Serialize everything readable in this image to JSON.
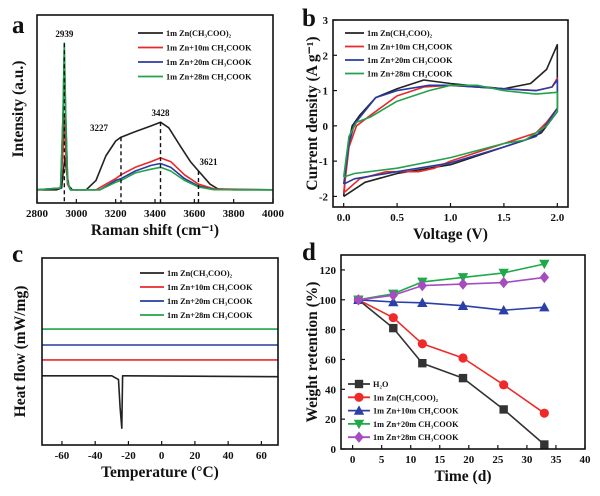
{
  "chart_data": [
    {
      "panel": "a",
      "type": "line",
      "xlabel": "Raman shift (cm⁻¹)",
      "ylabel": "Intensity (a.u.)",
      "xlim": [
        2800,
        4000
      ],
      "ylim": [
        0,
        1
      ],
      "xticks": [
        2800,
        3000,
        3200,
        3400,
        3600,
        3800,
        4000
      ],
      "xtick_labels": [
        "2800",
        "3000",
        "3200",
        "3400",
        "3600",
        "3800",
        "4000"
      ],
      "legend": "top-right",
      "annotations": [
        {
          "text": "2939",
          "x": 2939,
          "y_top": 0.85
        },
        {
          "text": "3227",
          "x": 3227,
          "y_top": 0.35
        },
        {
          "text": "3428",
          "x": 3428,
          "y_top": 0.43
        },
        {
          "text": "3621",
          "x": 3621,
          "y_top": 0.17
        }
      ],
      "series": [
        {
          "name": "1m Zn(CH₃COO)₂",
          "color": "#222222",
          "x": [
            2800,
            2900,
            2925,
            2935,
            2942,
            2950,
            2962,
            2980,
            3050,
            3100,
            3150,
            3200,
            3227,
            3300,
            3380,
            3428,
            3470,
            3530,
            3580,
            3621,
            3680,
            3720,
            3800,
            4000
          ],
          "y": [
            0.07,
            0.07,
            0.08,
            0.18,
            0.24,
            0.17,
            0.09,
            0.07,
            0.07,
            0.12,
            0.25,
            0.33,
            0.35,
            0.38,
            0.41,
            0.43,
            0.4,
            0.3,
            0.22,
            0.17,
            0.1,
            0.075,
            0.07,
            0.07
          ]
        },
        {
          "name": "1m Zn+10m CH₃COOK",
          "color": "#e8282b",
          "x": [
            2800,
            2920,
            2933,
            2939,
            2945,
            2955,
            2970,
            3100,
            3200,
            3227,
            3300,
            3380,
            3428,
            3480,
            3550,
            3621,
            3700,
            4000
          ],
          "y": [
            0.07,
            0.08,
            0.3,
            0.47,
            0.3,
            0.1,
            0.07,
            0.07,
            0.13,
            0.15,
            0.19,
            0.22,
            0.24,
            0.22,
            0.15,
            0.1,
            0.075,
            0.07
          ]
        },
        {
          "name": "1m Zn+20m CH₃COOK",
          "color": "#2a3b9f",
          "x": [
            2800,
            2920,
            2932,
            2939,
            2946,
            2956,
            2970,
            3120,
            3200,
            3227,
            3300,
            3380,
            3428,
            3480,
            3550,
            3621,
            3700,
            4000
          ],
          "y": [
            0.07,
            0.08,
            0.45,
            0.8,
            0.45,
            0.11,
            0.07,
            0.07,
            0.12,
            0.13,
            0.17,
            0.2,
            0.21,
            0.19,
            0.13,
            0.09,
            0.072,
            0.07
          ]
        },
        {
          "name": "1m Zn+28m CH₃COOK",
          "color": "#22a24a",
          "x": [
            2800,
            2920,
            2932,
            2939,
            2946,
            2956,
            2970,
            3120,
            3200,
            3227,
            3300,
            3380,
            3428,
            3480,
            3550,
            3621,
            3700,
            4000
          ],
          "y": [
            0.07,
            0.08,
            0.48,
            0.85,
            0.48,
            0.11,
            0.07,
            0.07,
            0.11,
            0.12,
            0.16,
            0.18,
            0.19,
            0.17,
            0.12,
            0.085,
            0.071,
            0.07
          ]
        }
      ]
    },
    {
      "panel": "b",
      "type": "line",
      "xlabel": "Voltage (V)",
      "ylabel": "Current density (A g⁻¹)",
      "xlim": [
        -0.1,
        2.1
      ],
      "ylim": [
        -2.3,
        3
      ],
      "xticks": [
        0,
        0.5,
        1,
        1.5,
        2
      ],
      "xtick_labels": [
        "0.0",
        "0.5",
        "1.0",
        "1.5",
        "2.0"
      ],
      "yticks": [
        -2,
        -1,
        0,
        1,
        2,
        3
      ],
      "ytick_labels": [
        "-2",
        "-1",
        "0",
        "1",
        "2",
        "3"
      ],
      "legend": "top-left",
      "series": [
        {
          "name": "1m Zn(CH₃COO)₂",
          "color": "#222222",
          "x": [
            0,
            0.04,
            0.08,
            0.15,
            0.3,
            0.5,
            0.75,
            1.0,
            1.5,
            1.75,
            1.9,
            2.0,
            2.0,
            1.95,
            1.85,
            1.7,
            1.5,
            1.0,
            0.5,
            0.2,
            0
          ],
          "y": [
            -2.0,
            -0.6,
            0.0,
            0.3,
            0.8,
            1.05,
            1.3,
            1.2,
            1.05,
            1.2,
            1.6,
            2.3,
            0.4,
            0.2,
            -0.2,
            -0.4,
            -0.6,
            -1.1,
            -1.35,
            -1.6,
            -2.0
          ]
        },
        {
          "name": "1m Zn+10m CH₃COOK",
          "color": "#e8282b",
          "x": [
            0,
            0.05,
            0.12,
            0.25,
            0.5,
            0.75,
            1.0,
            1.5,
            1.8,
            1.95,
            2.0,
            2.0,
            1.9,
            1.8,
            1.5,
            1.0,
            0.85,
            0.7,
            0.4,
            0.15,
            0
          ],
          "y": [
            -1.9,
            -0.6,
            0.0,
            0.3,
            0.85,
            1.1,
            1.15,
            1.05,
            1.0,
            1.1,
            1.35,
            0.5,
            0.1,
            -0.2,
            -0.5,
            -1.0,
            -1.2,
            -1.3,
            -1.3,
            -1.5,
            -1.9
          ]
        },
        {
          "name": "1m Zn+20m CH₃COOK",
          "color": "#2a3b9f",
          "x": [
            0,
            0.05,
            0.1,
            0.3,
            0.5,
            0.8,
            1.0,
            1.5,
            1.8,
            1.95,
            2.0,
            2.0,
            1.9,
            1.8,
            1.5,
            1.0,
            0.5,
            0.1,
            0
          ],
          "y": [
            -1.65,
            -0.5,
            0.05,
            0.8,
            1.0,
            1.15,
            1.15,
            1.05,
            1.0,
            1.1,
            1.3,
            0.5,
            0.05,
            -0.3,
            -0.6,
            -1.05,
            -1.3,
            -1.5,
            -1.65
          ]
        },
        {
          "name": "1m Zn+28m CH₃COOK",
          "color": "#22a24a",
          "x": [
            0,
            0.05,
            0.12,
            0.25,
            0.5,
            0.8,
            1.0,
            1.25,
            1.5,
            1.8,
            2.0,
            2.0,
            1.9,
            1.7,
            1.5,
            1.0,
            0.5,
            0.1,
            0
          ],
          "y": [
            -1.45,
            -0.3,
            0.1,
            0.25,
            0.7,
            1.0,
            1.15,
            1.15,
            1.0,
            0.9,
            0.95,
            0.4,
            0.0,
            -0.4,
            -0.5,
            -0.9,
            -1.2,
            -1.35,
            -1.45
          ]
        }
      ]
    },
    {
      "panel": "c",
      "type": "line",
      "xlabel": "Temperature (°C)",
      "ylabel": "Heat flow (mW/mg)",
      "xlim": [
        -72,
        70
      ],
      "ylim": [
        0,
        1
      ],
      "xticks": [
        -60,
        -40,
        -20,
        0,
        20,
        40,
        60
      ],
      "xtick_labels": [
        "-60",
        "-40",
        "-20",
        "0",
        "20",
        "40",
        "60"
      ],
      "legend": "top-right",
      "series": [
        {
          "name": "1m Zn(CH₃COO)₂",
          "color": "#222222",
          "x": [
            -72,
            -30,
            -26,
            -25,
            -24,
            -23.5,
            -22,
            70
          ],
          "y": [
            0.37,
            0.37,
            0.35,
            0.2,
            0.09,
            0.37,
            0.37,
            0.365
          ]
        },
        {
          "name": "1m Zn+10m CH₃COOK",
          "color": "#e8282b",
          "x": [
            -72,
            70
          ],
          "y": [
            0.455,
            0.455
          ]
        },
        {
          "name": "1m Zn+20m CH₃COOK",
          "color": "#2a3b9f",
          "x": [
            -72,
            70
          ],
          "y": [
            0.535,
            0.535
          ]
        },
        {
          "name": "1m Zn+28m CH₃COOK",
          "color": "#22a24a",
          "x": [
            -72,
            70
          ],
          "y": [
            0.62,
            0.62
          ]
        }
      ]
    },
    {
      "panel": "d",
      "type": "line",
      "xlabel": "Time (d)",
      "ylabel": "Weight retention (%)",
      "xlim": [
        -2,
        40
      ],
      "ylim": [
        0,
        130
      ],
      "xticks": [
        0,
        5,
        10,
        15,
        20,
        25,
        30,
        35,
        40
      ],
      "xtick_labels": [
        "0",
        "5",
        "10",
        "15",
        "20",
        "25",
        "30",
        "35",
        "40"
      ],
      "yticks": [
        0,
        20,
        40,
        60,
        80,
        100,
        120
      ],
      "ytick_labels": [
        "0",
        "20",
        "40",
        "60",
        "80",
        "100",
        "120"
      ],
      "legend": "bottom-left",
      "series": [
        {
          "name": "H₂O",
          "color": "#333333",
          "marker": "square",
          "x": [
            1,
            7,
            12,
            19,
            26,
            33
          ],
          "y": [
            100,
            81,
            57.5,
            47.5,
            26.5,
            3
          ]
        },
        {
          "name": "1m Zn(CH₃COO)₂",
          "color": "#ee2a2a",
          "marker": "circle",
          "x": [
            1,
            7,
            12,
            19,
            26,
            33
          ],
          "y": [
            100,
            88,
            70.5,
            61,
            43,
            24
          ]
        },
        {
          "name": "1m Zn+10m CH₃COOK",
          "color": "#2b3fa8",
          "marker": "triangle-up",
          "x": [
            1,
            7,
            12,
            19,
            26,
            33
          ],
          "y": [
            100,
            98.5,
            98,
            96,
            93,
            95
          ]
        },
        {
          "name": "1m Zn+20m CH₃COOK",
          "color": "#1faa4a",
          "marker": "triangle-down",
          "x": [
            1,
            7,
            12,
            19,
            26,
            33
          ],
          "y": [
            100,
            104,
            112,
            115,
            118,
            124
          ]
        },
        {
          "name": "1m Zn+28m CH₃COOK",
          "color": "#a54dc0",
          "marker": "diamond",
          "x": [
            1,
            7,
            12,
            19,
            26,
            33
          ],
          "y": [
            100,
            103,
            109.5,
            110.5,
            111.5,
            115
          ]
        }
      ]
    }
  ]
}
